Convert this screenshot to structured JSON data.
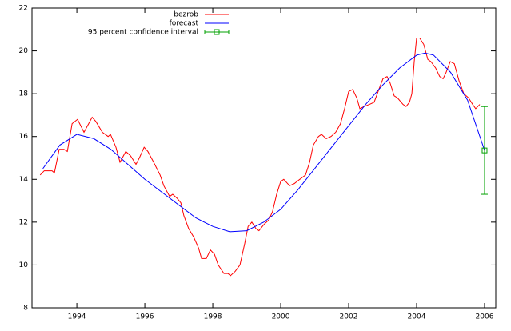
{
  "chart_data": {
    "type": "line",
    "xlim": [
      1992.68,
      2006.33
    ],
    "ylim": [
      8,
      22
    ],
    "xticks": [
      1994,
      1996,
      1998,
      2000,
      2002,
      2004,
      2006
    ],
    "yticks": [
      8,
      10,
      12,
      14,
      16,
      18,
      20,
      22
    ],
    "legend": "top-center",
    "series": [
      {
        "name": "bezrob",
        "color": "#ff0000",
        "x": [
          1992.92,
          1993.04,
          1993.27,
          1993.34,
          1993.48,
          1993.62,
          1993.72,
          1993.86,
          1994.02,
          1994.21,
          1994.45,
          1994.56,
          1994.75,
          1994.92,
          1994.99,
          1995.15,
          1995.27,
          1995.44,
          1995.58,
          1995.74,
          1995.84,
          1995.98,
          1996.09,
          1996.26,
          1996.45,
          1996.56,
          1996.73,
          1996.82,
          1996.96,
          1997.06,
          1997.15,
          1997.29,
          1997.44,
          1997.58,
          1997.67,
          1997.81,
          1997.93,
          1998.05,
          1998.16,
          1998.33,
          1998.45,
          1998.52,
          1998.66,
          1998.8,
          1998.94,
          1999.04,
          1999.15,
          1999.27,
          1999.36,
          1999.51,
          1999.65,
          1999.76,
          1999.88,
          2000.0,
          2000.09,
          2000.26,
          2000.4,
          2000.56,
          2000.73,
          2000.85,
          2000.96,
          2001.11,
          2001.2,
          2001.34,
          2001.48,
          2001.62,
          2001.76,
          2001.88,
          2002.0,
          2002.12,
          2002.24,
          2002.33,
          2002.45,
          2002.61,
          2002.75,
          2002.89,
          2003.01,
          2003.13,
          2003.22,
          2003.34,
          2003.44,
          2003.6,
          2003.69,
          2003.79,
          2003.86,
          2003.93,
          2004.0,
          2004.09,
          2004.21,
          2004.33,
          2004.42,
          2004.56,
          2004.68,
          2004.78,
          2004.87,
          2004.99,
          2005.11,
          2005.25,
          2005.39,
          2005.53,
          2005.65,
          2005.74,
          2005.86
        ],
        "values": [
          14.2,
          14.4,
          14.4,
          14.3,
          15.4,
          15.4,
          15.3,
          16.6,
          16.8,
          16.2,
          16.9,
          16.7,
          16.2,
          16.0,
          16.1,
          15.5,
          14.8,
          15.3,
          15.1,
          14.7,
          15.0,
          15.5,
          15.3,
          14.8,
          14.2,
          13.7,
          13.2,
          13.3,
          13.1,
          12.9,
          12.3,
          11.7,
          11.3,
          10.8,
          10.3,
          10.3,
          10.7,
          10.5,
          10.0,
          9.6,
          9.6,
          9.5,
          9.7,
          10.0,
          11.0,
          11.8,
          12.0,
          11.7,
          11.6,
          11.9,
          12.1,
          12.5,
          13.3,
          13.9,
          14.0,
          13.7,
          13.8,
          14.0,
          14.2,
          14.8,
          15.6,
          16.0,
          16.1,
          15.9,
          16.0,
          16.2,
          16.6,
          17.3,
          18.1,
          18.2,
          17.8,
          17.3,
          17.4,
          17.5,
          17.6,
          18.2,
          18.7,
          18.8,
          18.5,
          17.9,
          17.8,
          17.5,
          17.4,
          17.6,
          18.0,
          19.5,
          20.6,
          20.6,
          20.3,
          19.6,
          19.5,
          19.2,
          18.8,
          18.7,
          19.0,
          19.5,
          19.4,
          18.6,
          18.0,
          17.8,
          17.5,
          17.3,
          17.5
        ]
      },
      {
        "name": "forecast",
        "color": "#0000ff",
        "x": [
          1993.0,
          1993.5,
          1994.0,
          1994.5,
          1995.0,
          1995.5,
          1996.0,
          1996.5,
          1997.0,
          1997.5,
          1998.0,
          1998.5,
          1999.0,
          1999.5,
          2000.0,
          2000.5,
          2001.0,
          2001.5,
          2002.0,
          2002.5,
          2003.0,
          2003.5,
          2004.0,
          2004.25,
          2004.5,
          2005.0,
          2005.5,
          2006.0
        ],
        "values": [
          14.5,
          15.6,
          16.1,
          15.9,
          15.4,
          14.7,
          14.0,
          13.4,
          12.8,
          12.2,
          11.8,
          11.55,
          11.6,
          12.0,
          12.6,
          13.5,
          14.5,
          15.5,
          16.5,
          17.5,
          18.4,
          19.2,
          19.8,
          19.9,
          19.8,
          19.0,
          17.7,
          15.35
        ]
      },
      {
        "name": "95 percent confidence interval",
        "color": "#00a000",
        "style": "errorbar",
        "x": [
          2006.0
        ],
        "values": [
          15.35
        ],
        "low": [
          13.3
        ],
        "high": [
          17.4
        ]
      }
    ]
  }
}
